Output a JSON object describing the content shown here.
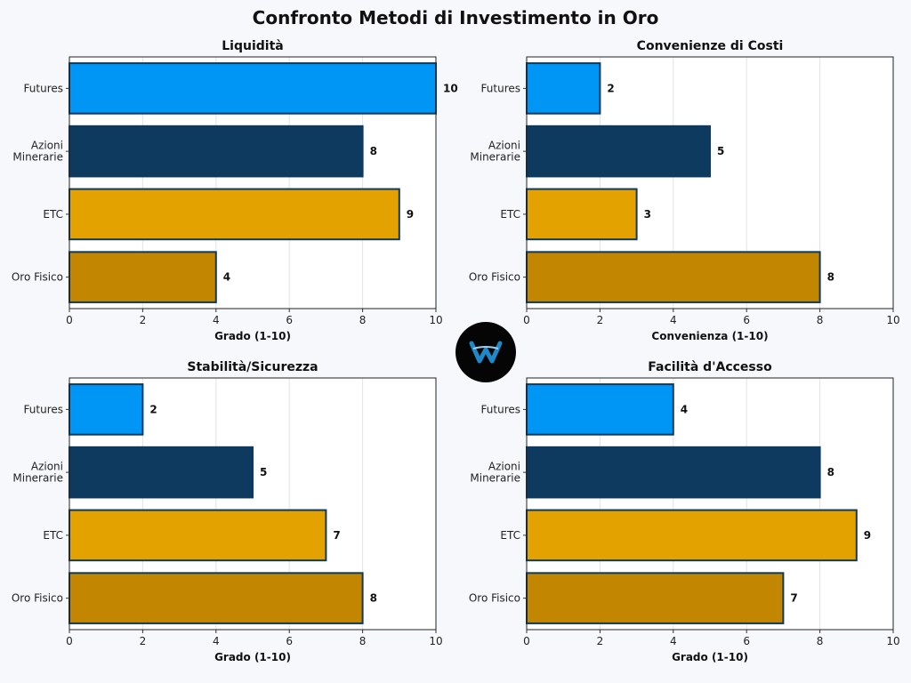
{
  "figure_title": "Confronto Metodi di Investimento in Oro",
  "colors": {
    "Futures": "#0096f5",
    "Azioni Minerarie": "#0d3a5e",
    "ETC": "#e3a200",
    "Oro Fisico": "#c28600",
    "bar_edge": "#0d3a5e"
  },
  "chart_data": [
    {
      "type": "bar",
      "orientation": "horizontal",
      "title": "Liquidità",
      "xlabel": "Grado (1-10)",
      "categories": [
        "Futures",
        "Azioni Minerarie",
        "ETC",
        "Oro Fisico"
      ],
      "category_labels": [
        [
          "Futures"
        ],
        [
          "Azioni",
          "Minerarie"
        ],
        [
          "ETC"
        ],
        [
          "Oro Fisico"
        ]
      ],
      "values": [
        10,
        8,
        9,
        4
      ],
      "xlim": [
        0,
        10
      ],
      "xticks": [
        0,
        2,
        4,
        6,
        8,
        10
      ],
      "grid": "vertical"
    },
    {
      "type": "bar",
      "orientation": "horizontal",
      "title": "Convenienze di Costi",
      "xlabel": "Convenienza (1-10)",
      "categories": [
        "Futures",
        "Azioni Minerarie",
        "ETC",
        "Oro Fisico"
      ],
      "category_labels": [
        [
          "Futures"
        ],
        [
          "Azioni",
          "Minerarie"
        ],
        [
          "ETC"
        ],
        [
          "Oro Fisico"
        ]
      ],
      "values": [
        2,
        5,
        3,
        8
      ],
      "xlim": [
        0,
        10
      ],
      "xticks": [
        0,
        2,
        4,
        6,
        8,
        10
      ],
      "grid": "vertical"
    },
    {
      "type": "bar",
      "orientation": "horizontal",
      "title": "Stabilità/Sicurezza",
      "xlabel": "Grado (1-10)",
      "categories": [
        "Futures",
        "Azioni Minerarie",
        "ETC",
        "Oro Fisico"
      ],
      "category_labels": [
        [
          "Futures"
        ],
        [
          "Azioni",
          "Minerarie"
        ],
        [
          "ETC"
        ],
        [
          "Oro Fisico"
        ]
      ],
      "values": [
        2,
        5,
        7,
        8
      ],
      "xlim": [
        0,
        10
      ],
      "xticks": [
        0,
        2,
        4,
        6,
        8,
        10
      ],
      "grid": "vertical"
    },
    {
      "type": "bar",
      "orientation": "horizontal",
      "title": "Facilità d'Accesso",
      "xlabel": "Grado (1-10)",
      "categories": [
        "Futures",
        "Azioni Minerarie",
        "ETC",
        "Oro Fisico"
      ],
      "category_labels": [
        [
          "Futures"
        ],
        [
          "Azioni",
          "Minerarie"
        ],
        [
          "ETC"
        ],
        [
          "Oro Fisico"
        ]
      ],
      "values": [
        4,
        8,
        9,
        7
      ],
      "xlim": [
        0,
        10
      ],
      "xticks": [
        0,
        2,
        4,
        6,
        8,
        10
      ],
      "grid": "vertical"
    }
  ]
}
